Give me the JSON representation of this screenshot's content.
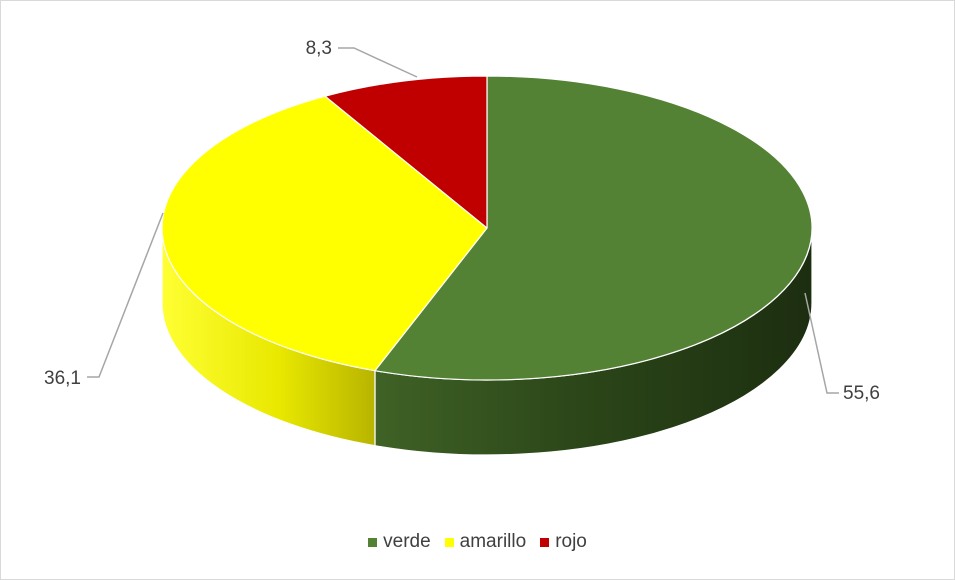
{
  "chart_data": {
    "type": "pie",
    "style": "3d",
    "categories": [
      "verde",
      "amarillo",
      "rojo"
    ],
    "values": [
      55.6,
      36.1,
      8.3
    ],
    "value_labels": [
      "55,6",
      "36,1",
      "8,3"
    ],
    "colors": [
      "#548235",
      "#ffff00",
      "#c00000"
    ],
    "legend": {
      "position": "bottom",
      "entries": [
        "verde",
        "amarillo",
        "rojo"
      ]
    }
  }
}
